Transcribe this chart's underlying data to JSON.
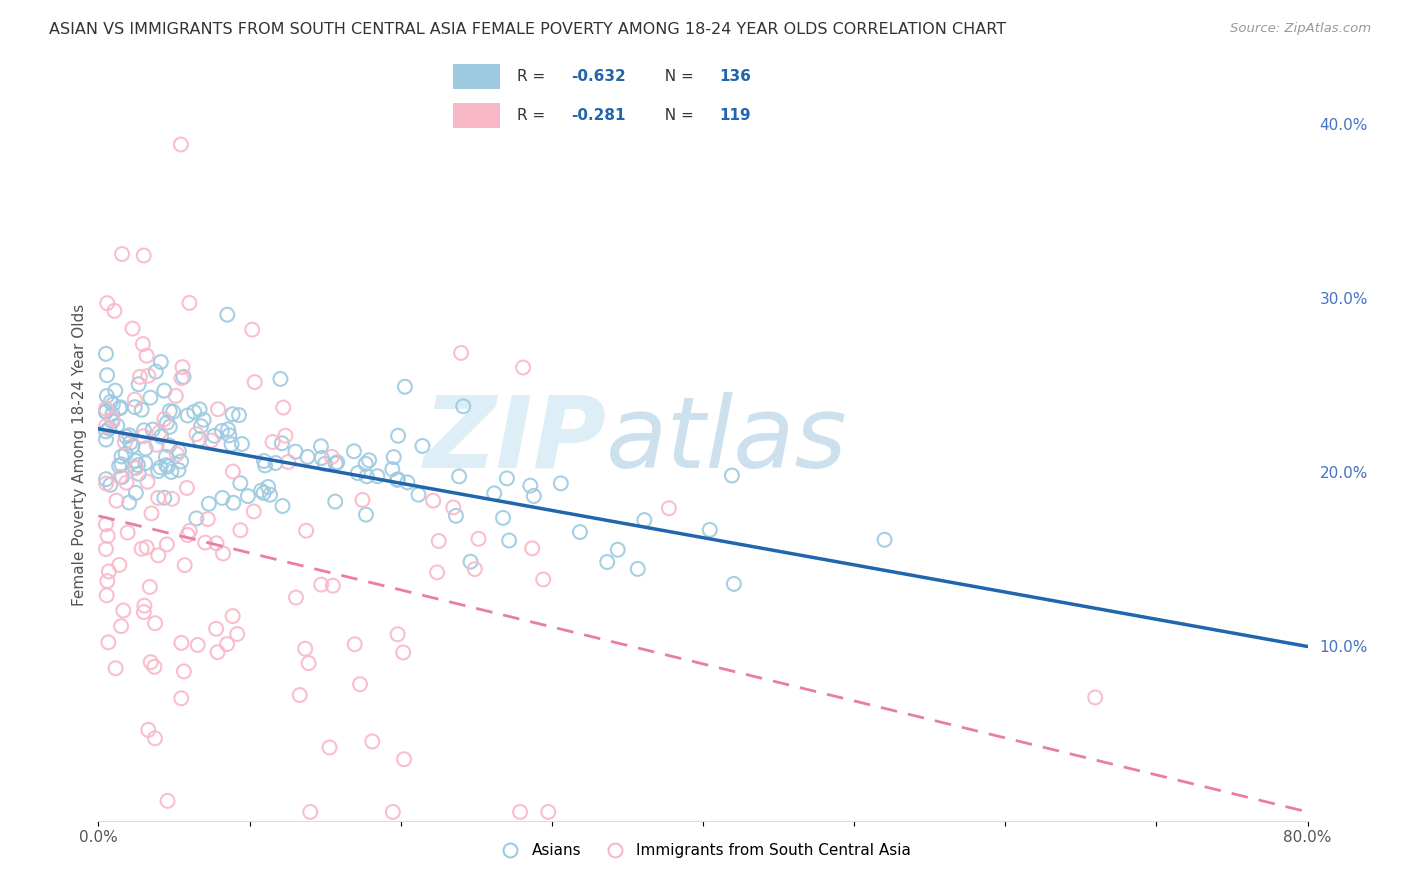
{
  "title": "ASIAN VS IMMIGRANTS FROM SOUTH CENTRAL ASIA FEMALE POVERTY AMONG 18-24 YEAR OLDS CORRELATION CHART",
  "source": "Source: ZipAtlas.com",
  "ylabel": "Female Poverty Among 18-24 Year Olds",
  "xlim": [
    0.0,
    0.8
  ],
  "ylim": [
    0.0,
    0.42
  ],
  "yticks_right": [
    0.1,
    0.2,
    0.3,
    0.4
  ],
  "ytick_right_labels": [
    "10.0%",
    "20.0%",
    "30.0%",
    "40.0%"
  ],
  "blue_r": -0.632,
  "blue_n": 136,
  "pink_r": -0.281,
  "pink_n": 119,
  "blue_scatter_color": "#9ecae1",
  "pink_scatter_color": "#f9b8c8",
  "blue_line_color": "#2166ac",
  "pink_line_color": "#e87fa0",
  "blue_legend_color": "#9ecae1",
  "pink_legend_color": "#f9b8c8",
  "legend_text_color": "#333333",
  "legend_value_color": "#2166ac",
  "watermark": "ZIPatlas",
  "watermark_zip_color": "#c8e0ef",
  "watermark_atlas_color": "#b8d4e8",
  "right_tick_color": "#4472c4",
  "grid_color": "#e0e0e0",
  "title_color": "#333333",
  "source_color": "#999999"
}
